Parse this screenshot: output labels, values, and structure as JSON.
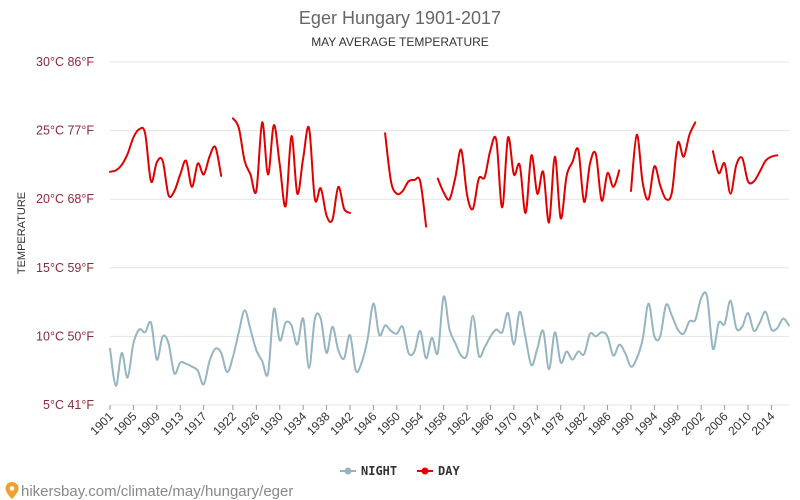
{
  "chart_data": {
    "type": "line",
    "title": "Eger Hungary 1901-2017",
    "subtitle": "MAY AVERAGE TEMPERATURE",
    "ylabel": "TEMPERATURE",
    "ylim": [
      5,
      30
    ],
    "y_ticks": [
      {
        "value": 30,
        "label": "30°C 86°F"
      },
      {
        "value": 25,
        "label": "25°C 77°F"
      },
      {
        "value": 20,
        "label": "20°C 68°F"
      },
      {
        "value": 15,
        "label": "15°C 59°F"
      },
      {
        "value": 10,
        "label": "10°C 50°F"
      },
      {
        "value": 5,
        "label": "5°C 41°F"
      }
    ],
    "x_ticks": [
      1901,
      1905,
      1909,
      1913,
      1917,
      1922,
      1926,
      1930,
      1934,
      1938,
      1942,
      1946,
      1950,
      1954,
      1958,
      1962,
      1966,
      1970,
      1974,
      1978,
      1982,
      1986,
      1990,
      1994,
      1998,
      2002,
      2006,
      2010,
      2014
    ],
    "xlim": [
      1901,
      2017
    ],
    "grid": true,
    "legend_position": "bottom-center",
    "series": [
      {
        "name": "NIGHT",
        "color": "#95b5c0",
        "points": [
          [
            1901,
            9.1
          ],
          [
            1902,
            6.4
          ],
          [
            1903,
            8.8
          ],
          [
            1904,
            7.0
          ],
          [
            1905,
            9.5
          ],
          [
            1906,
            10.5
          ],
          [
            1907,
            10.3
          ],
          [
            1908,
            11.0
          ],
          [
            1909,
            8.3
          ],
          [
            1910,
            10.0
          ],
          [
            1911,
            9.5
          ],
          [
            1912,
            7.3
          ],
          [
            1913,
            8.1
          ],
          [
            1914,
            8.0
          ],
          [
            1915,
            7.8
          ],
          [
            1916,
            7.5
          ],
          [
            1917,
            6.5
          ],
          [
            1918,
            8.2
          ],
          [
            1919,
            9.1
          ],
          [
            1920,
            8.8
          ],
          [
            1921,
            7.4
          ],
          [
            1922,
            8.5
          ],
          [
            1923,
            10.3
          ],
          [
            1924,
            11.9
          ],
          [
            1925,
            10.5
          ],
          [
            1926,
            9.0
          ],
          [
            1927,
            8.2
          ],
          [
            1928,
            7.3
          ],
          [
            1929,
            12.0
          ],
          [
            1930,
            9.7
          ],
          [
            1931,
            11.0
          ],
          [
            1932,
            10.8
          ],
          [
            1933,
            9.4
          ],
          [
            1934,
            11.3
          ],
          [
            1935,
            7.7
          ],
          [
            1936,
            11.3
          ],
          [
            1937,
            11.3
          ],
          [
            1938,
            8.8
          ],
          [
            1939,
            10.7
          ],
          [
            1940,
            9.0
          ],
          [
            1941,
            8.4
          ],
          [
            1942,
            10.1
          ],
          [
            1943,
            7.5
          ],
          [
            1944,
            8.1
          ],
          [
            1945,
            9.8
          ],
          [
            1946,
            12.4
          ],
          [
            1947,
            10.1
          ],
          [
            1948,
            10.8
          ],
          [
            1949,
            10.4
          ],
          [
            1950,
            10.2
          ],
          [
            1951,
            10.7
          ],
          [
            1952,
            8.8
          ],
          [
            1953,
            8.9
          ],
          [
            1954,
            10.4
          ],
          [
            1955,
            8.4
          ],
          [
            1956,
            9.9
          ],
          [
            1957,
            8.8
          ],
          [
            1958,
            12.9
          ],
          [
            1959,
            10.5
          ],
          [
            1960,
            9.5
          ],
          [
            1961,
            8.6
          ],
          [
            1962,
            8.7
          ],
          [
            1963,
            11.5
          ],
          [
            1964,
            8.6
          ],
          [
            1965,
            9.2
          ],
          [
            1966,
            10.0
          ],
          [
            1967,
            10.5
          ],
          [
            1968,
            10.3
          ],
          [
            1969,
            11.7
          ],
          [
            1970,
            9.4
          ],
          [
            1971,
            11.8
          ],
          [
            1972,
            9.9
          ],
          [
            1973,
            7.9
          ],
          [
            1974,
            9.1
          ],
          [
            1975,
            10.4
          ],
          [
            1976,
            7.6
          ],
          [
            1977,
            10.3
          ],
          [
            1978,
            8.1
          ],
          [
            1979,
            8.9
          ],
          [
            1980,
            8.3
          ],
          [
            1981,
            8.9
          ],
          [
            1982,
            8.7
          ],
          [
            1983,
            10.2
          ],
          [
            1984,
            10.0
          ],
          [
            1985,
            10.3
          ],
          [
            1986,
            10.0
          ],
          [
            1987,
            8.6
          ],
          [
            1988,
            9.4
          ],
          [
            1989,
            8.8
          ],
          [
            1990,
            7.8
          ],
          [
            1991,
            8.4
          ],
          [
            1992,
            9.8
          ],
          [
            1993,
            12.4
          ],
          [
            1994,
            10.0
          ],
          [
            1995,
            10.0
          ],
          [
            1996,
            12.3
          ],
          [
            1997,
            11.5
          ],
          [
            1998,
            10.5
          ],
          [
            1999,
            10.2
          ],
          [
            2000,
            11.1
          ],
          [
            2001,
            11.2
          ],
          [
            2002,
            12.8
          ],
          [
            2003,
            12.9
          ],
          [
            2004,
            9.1
          ],
          [
            2005,
            11.0
          ],
          [
            2006,
            10.9
          ],
          [
            2007,
            12.6
          ],
          [
            2008,
            10.6
          ],
          [
            2009,
            10.7
          ],
          [
            2010,
            11.7
          ],
          [
            2011,
            10.4
          ],
          [
            2012,
            11.0
          ],
          [
            2013,
            11.8
          ],
          [
            2014,
            10.5
          ],
          [
            2015,
            10.6
          ],
          [
            2016,
            11.3
          ],
          [
            2017,
            10.8
          ]
        ]
      },
      {
        "name": "DAY",
        "color": "#e00000",
        "segments": [
          [
            [
              1901,
              22.0
            ],
            [
              1902,
              22.1
            ],
            [
              1903,
              22.5
            ],
            [
              1904,
              23.3
            ],
            [
              1905,
              24.5
            ],
            [
              1906,
              25.1
            ],
            [
              1907,
              24.8
            ],
            [
              1908,
              21.3
            ],
            [
              1909,
              22.7
            ],
            [
              1910,
              22.8
            ],
            [
              1911,
              20.3
            ],
            [
              1912,
              20.6
            ],
            [
              1913,
              21.8
            ],
            [
              1914,
              22.8
            ],
            [
              1915,
              20.9
            ],
            [
              1916,
              22.6
            ],
            [
              1917,
              21.8
            ],
            [
              1918,
              23.1
            ],
            [
              1919,
              23.8
            ],
            [
              1920,
              21.7
            ]
          ],
          [
            [
              1922,
              25.9
            ],
            [
              1923,
              25.2
            ],
            [
              1924,
              22.8
            ],
            [
              1925,
              21.8
            ],
            [
              1926,
              20.6
            ],
            [
              1927,
              25.6
            ],
            [
              1928,
              21.8
            ],
            [
              1929,
              25.4
            ],
            [
              1930,
              22.5
            ],
            [
              1931,
              19.5
            ],
            [
              1932,
              24.6
            ],
            [
              1933,
              20.4
            ],
            [
              1934,
              23.0
            ],
            [
              1935,
              25.2
            ],
            [
              1936,
              20.0
            ],
            [
              1937,
              20.8
            ],
            [
              1938,
              18.8
            ],
            [
              1939,
              18.5
            ],
            [
              1940,
              20.9
            ],
            [
              1941,
              19.3
            ],
            [
              1942,
              19.0
            ]
          ],
          [
            [
              1948,
              24.8
            ],
            [
              1949,
              21.3
            ],
            [
              1950,
              20.4
            ],
            [
              1951,
              20.6
            ],
            [
              1952,
              21.3
            ],
            [
              1953,
              21.4
            ],
            [
              1954,
              21.3
            ],
            [
              1955,
              18.0
            ]
          ],
          [
            [
              1957,
              21.5
            ],
            [
              1958,
              20.5
            ],
            [
              1959,
              20.0
            ],
            [
              1960,
              21.6
            ],
            [
              1961,
              23.6
            ],
            [
              1962,
              20.3
            ],
            [
              1963,
              19.3
            ],
            [
              1964,
              21.5
            ],
            [
              1965,
              21.6
            ],
            [
              1966,
              23.6
            ],
            [
              1967,
              24.3
            ],
            [
              1968,
              19.4
            ],
            [
              1969,
              24.5
            ],
            [
              1970,
              21.8
            ],
            [
              1971,
              22.5
            ],
            [
              1972,
              19.0
            ],
            [
              1973,
              23.2
            ],
            [
              1974,
              20.4
            ],
            [
              1975,
              22.0
            ],
            [
              1976,
              18.3
            ],
            [
              1977,
              23.1
            ],
            [
              1978,
              18.6
            ],
            [
              1979,
              21.7
            ],
            [
              1980,
              22.7
            ],
            [
              1981,
              23.6
            ],
            [
              1982,
              19.8
            ],
            [
              1983,
              22.6
            ],
            [
              1984,
              23.3
            ],
            [
              1985,
              19.9
            ],
            [
              1986,
              21.9
            ],
            [
              1987,
              20.9
            ],
            [
              1988,
              22.1
            ]
          ],
          [
            [
              1990,
              20.6
            ],
            [
              1991,
              24.7
            ],
            [
              1992,
              21.2
            ],
            [
              1993,
              20.0
            ],
            [
              1994,
              22.4
            ],
            [
              1995,
              21.0
            ],
            [
              1996,
              20.0
            ],
            [
              1997,
              20.5
            ],
            [
              1998,
              24.1
            ],
            [
              1999,
              23.1
            ],
            [
              2000,
              24.7
            ],
            [
              2001,
              25.6
            ]
          ],
          [
            [
              2004,
              23.5
            ],
            [
              2005,
              21.9
            ],
            [
              2006,
              22.6
            ],
            [
              2007,
              20.4
            ],
            [
              2008,
              22.5
            ],
            [
              2009,
              23.0
            ],
            [
              2010,
              21.3
            ],
            [
              2011,
              21.3
            ],
            [
              2012,
              22.0
            ],
            [
              2013,
              22.8
            ],
            [
              2014,
              23.1
            ],
            [
              2015,
              23.2
            ]
          ]
        ]
      }
    ]
  },
  "footer": {
    "url": "hikersbay.com/climate/may/hungary/eger"
  }
}
